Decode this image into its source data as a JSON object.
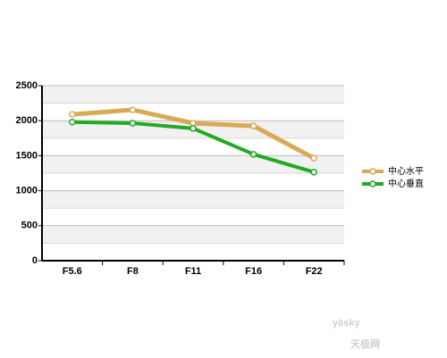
{
  "chart_data": {
    "type": "line",
    "categories": [
      "F5.6",
      "F8",
      "F11",
      "F16",
      "F22"
    ],
    "series": [
      {
        "name": "中心水平",
        "color": "#d9aa55",
        "values": [
          2090,
          2155,
          1965,
          1925,
          1465
        ]
      },
      {
        "name": "中心垂直",
        "color": "#22aa22",
        "values": [
          1980,
          1965,
          1890,
          1520,
          1265
        ]
      }
    ],
    "ylim": [
      0,
      2500
    ],
    "yticks": [
      0,
      500,
      1000,
      1500,
      2000,
      2500
    ],
    "grid": true,
    "legend": "right"
  },
  "watermark": {
    "brand": "yësky",
    "name": "天极网"
  }
}
